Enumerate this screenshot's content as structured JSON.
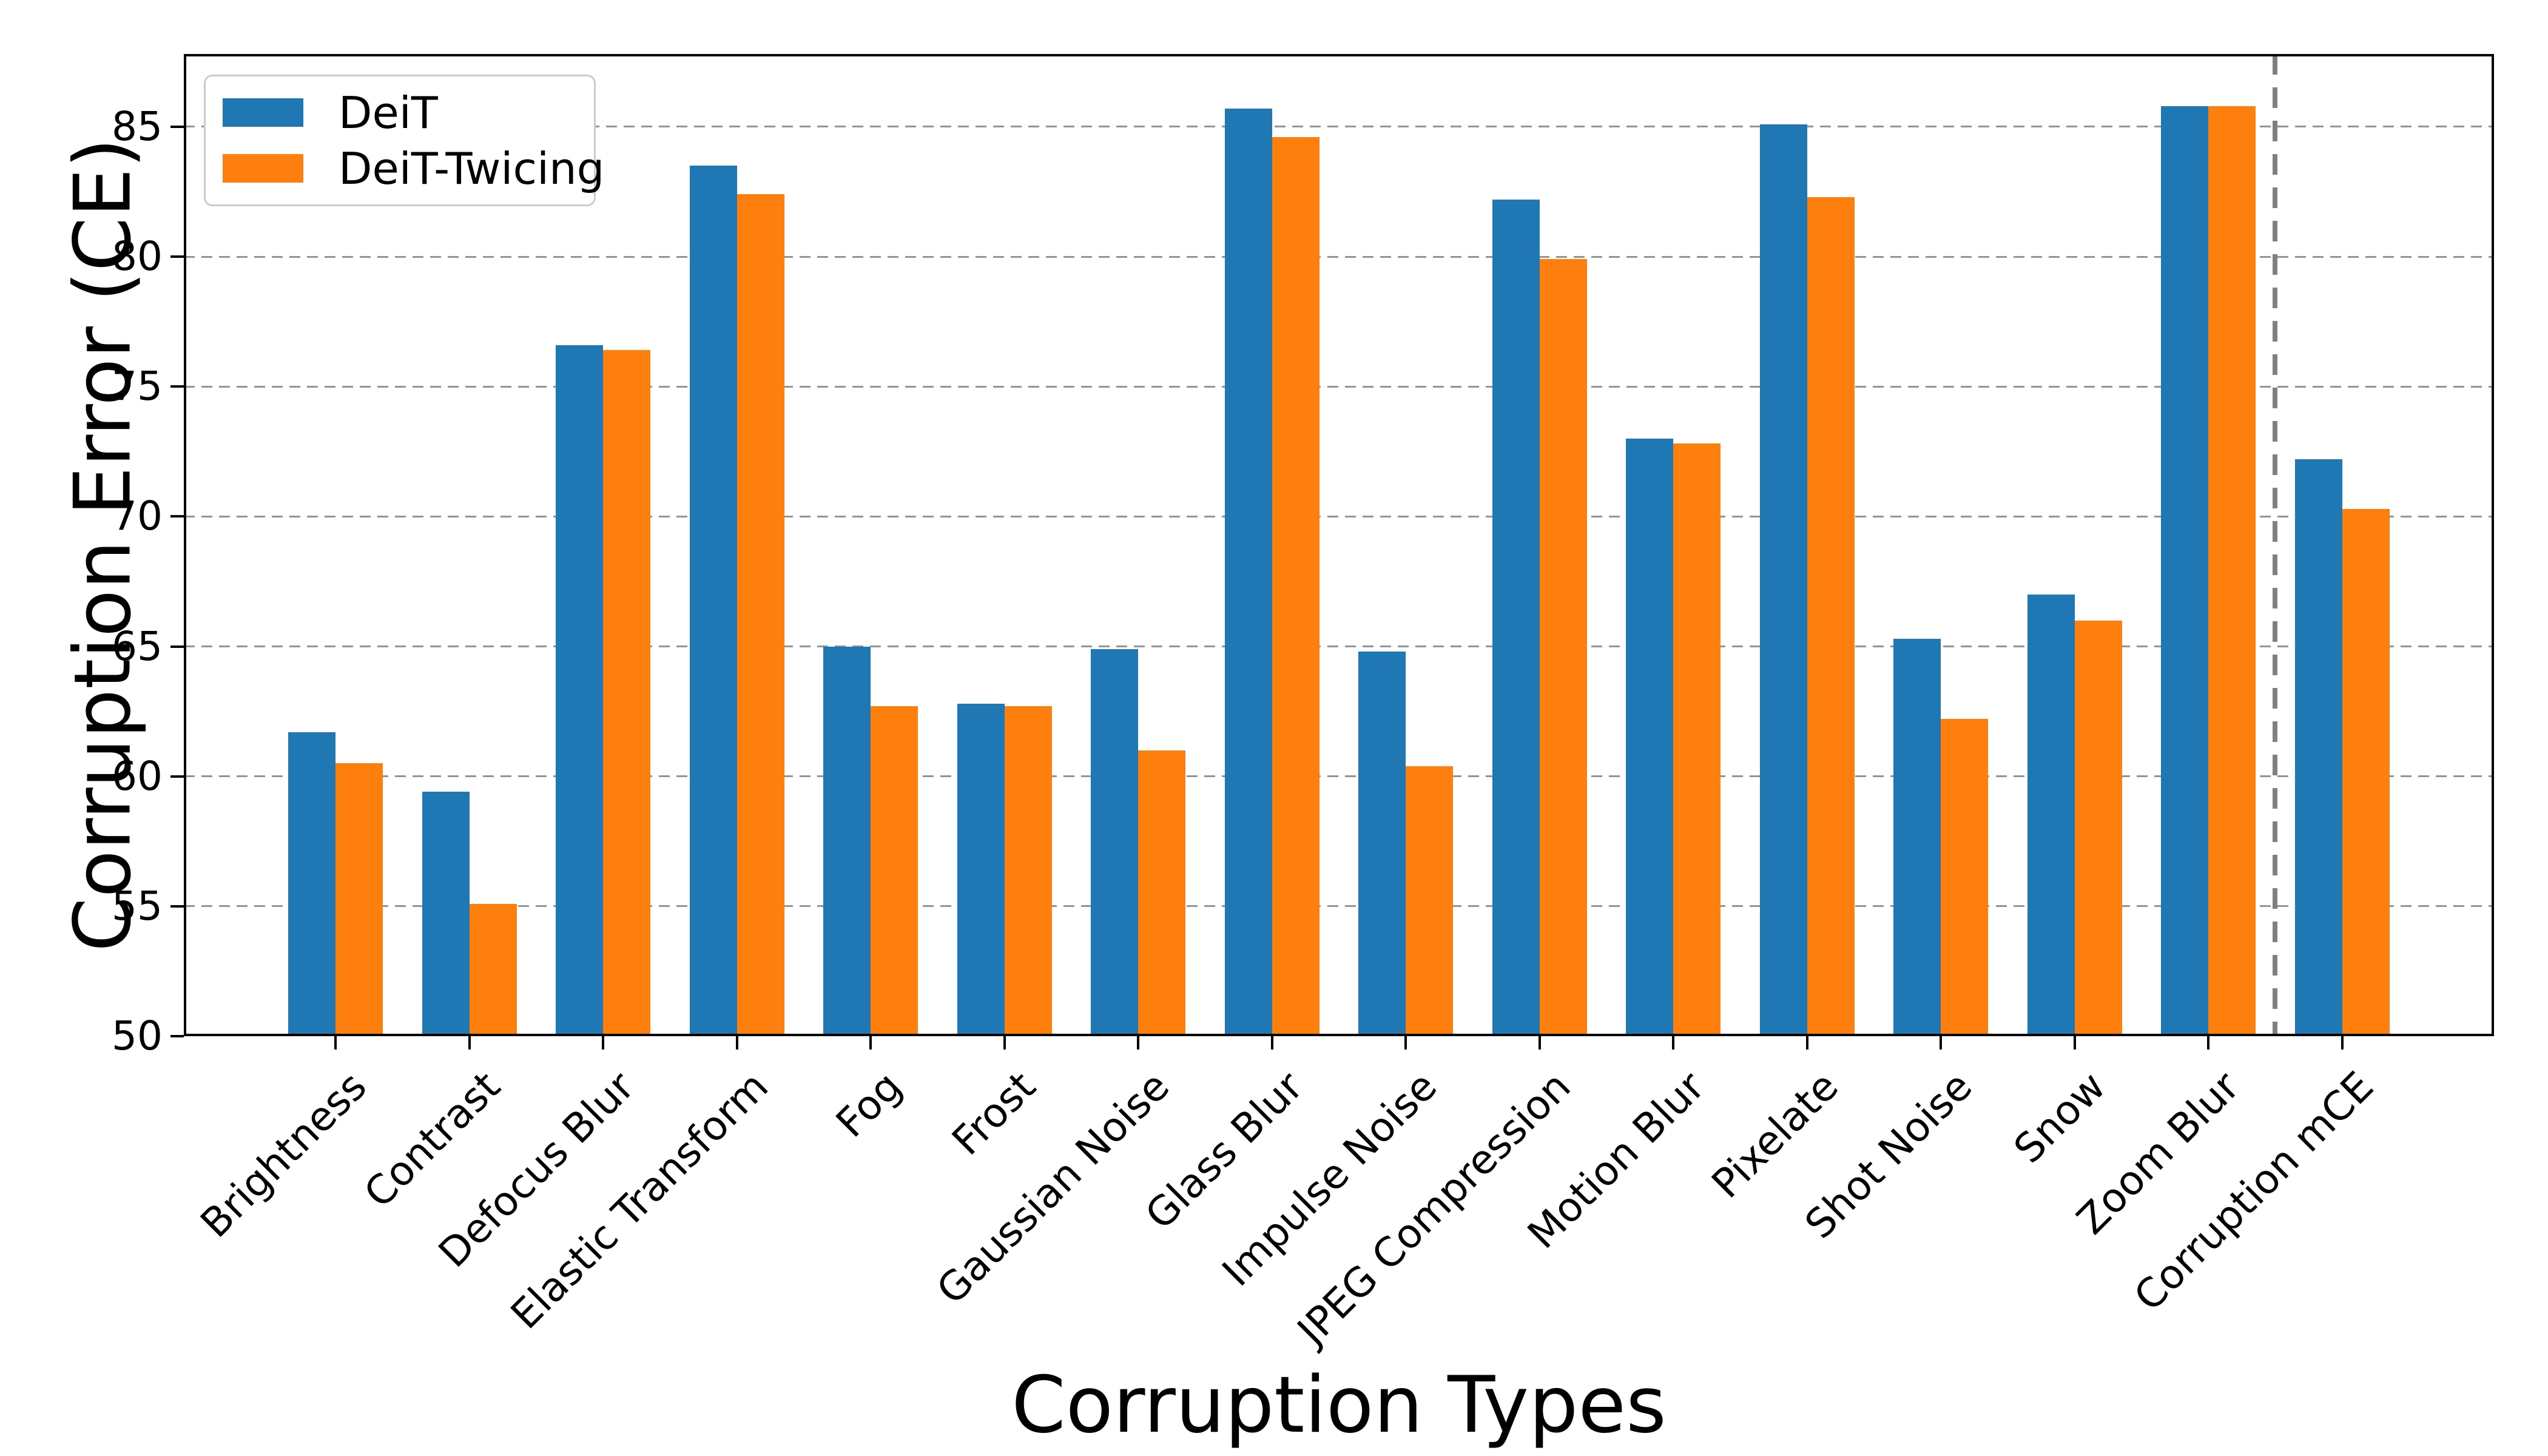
{
  "chart_data": {
    "type": "bar",
    "title": "",
    "xlabel": "Corruption Types",
    "ylabel": "Corruption Error (CE)",
    "categories": [
      "Brightness",
      "Contrast",
      "Defocus Blur",
      "Elastic Transform",
      "Fog",
      "Frost",
      "Gaussian Noise",
      "Glass Blur",
      "Impulse Noise",
      "JPEG Compression",
      "Motion Blur",
      "Pixelate",
      "Shot Noise",
      "Snow",
      "Zoom Blur",
      "Corruption mCE"
    ],
    "series": [
      {
        "name": "DeiT",
        "color": "#1f77b4",
        "values": [
          61.7,
          59.4,
          76.6,
          83.5,
          65.0,
          62.8,
          64.9,
          85.7,
          64.8,
          82.2,
          73.0,
          85.1,
          65.3,
          67.0,
          85.8,
          72.2
        ]
      },
      {
        "name": "DeiT-Twicing",
        "color": "#ff7f0e",
        "values": [
          60.5,
          55.1,
          76.4,
          82.4,
          62.7,
          62.7,
          61.0,
          84.6,
          60.4,
          79.9,
          72.8,
          82.3,
          62.2,
          66.0,
          85.8,
          70.3
        ]
      }
    ],
    "ylim": [
      50,
      87.8
    ],
    "yticks": [
      50,
      55,
      60,
      65,
      70,
      75,
      80,
      85
    ],
    "grid": {
      "axis": "y",
      "style": "dashed",
      "color": "#949494"
    },
    "legend": {
      "position": "upper-left",
      "entries": [
        "DeiT",
        "DeiT-Twicing"
      ]
    },
    "separator": {
      "after_category": "Zoom Blur",
      "style": "dashed",
      "color": "#808080"
    }
  },
  "layout_colors": {
    "background": "#ffffff",
    "axis": "#000000",
    "legend_border": "#cccccc"
  }
}
